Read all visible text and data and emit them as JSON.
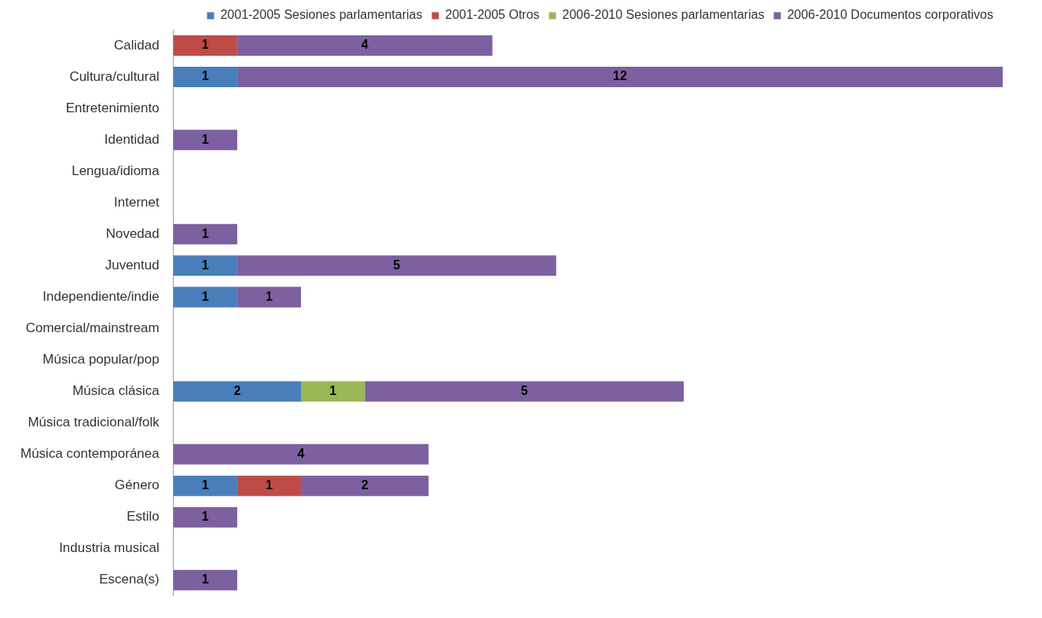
{
  "chart_data": {
    "type": "bar",
    "orientation": "horizontal",
    "stacked": true,
    "data_labels": true,
    "legend": "top",
    "categories": [
      "Calidad",
      "Cultura/cultural",
      "Entretenimiento",
      "Identidad",
      "Lengua/idioma",
      "Internet",
      "Novedad",
      "Juventud",
      "Independiente/indie",
      "Comercial/mainstream",
      "Música popular/pop",
      "Música clásica",
      "Música tradicional/folk",
      "Música contemporánea",
      "Género",
      "Estilo",
      "Industria musical",
      "Escena(s)"
    ],
    "series": [
      {
        "name": "2001-2005 Sesiones parlamentarias",
        "color": "#4a7ebb",
        "values": [
          null,
          1,
          null,
          null,
          null,
          null,
          null,
          1,
          1,
          null,
          null,
          2,
          null,
          null,
          1,
          null,
          null,
          null
        ]
      },
      {
        "name": "2001-2005 Otros",
        "color": "#be4b48",
        "values": [
          1,
          null,
          null,
          null,
          null,
          null,
          null,
          null,
          null,
          null,
          null,
          null,
          null,
          null,
          1,
          null,
          null,
          null
        ]
      },
      {
        "name": "2006-2010 Sesiones parlamentarias",
        "color": "#98b954",
        "values": [
          null,
          null,
          null,
          null,
          null,
          null,
          null,
          null,
          null,
          null,
          null,
          1,
          null,
          null,
          null,
          null,
          null,
          null
        ]
      },
      {
        "name": "2006-2010 Documentos corporativos",
        "color": "#7d60a0",
        "values": [
          4,
          12,
          null,
          1,
          null,
          null,
          1,
          5,
          1,
          null,
          null,
          5,
          null,
          4,
          2,
          1,
          null,
          1
        ]
      }
    ]
  }
}
